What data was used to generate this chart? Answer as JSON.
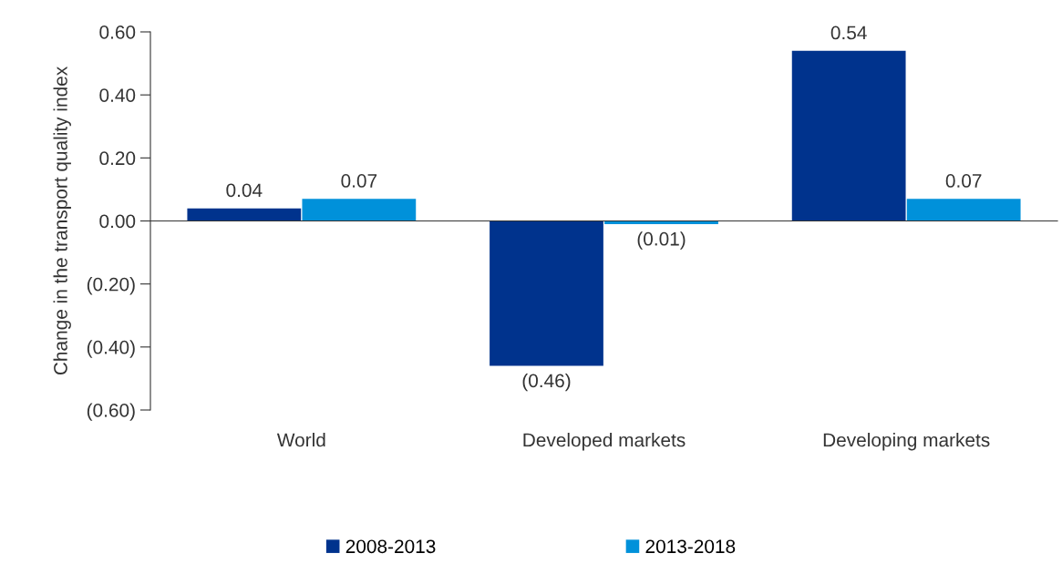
{
  "chart_data": {
    "type": "bar",
    "ylabel": "Change in the transport quality index",
    "categories": [
      "World",
      "Developed markets",
      "Developing markets"
    ],
    "series": [
      {
        "name": "2008-2013",
        "color": "#00338d",
        "values": [
          0.04,
          -0.46,
          0.54
        ],
        "value_labels": [
          "0.04",
          "(0.46)",
          "0.54"
        ]
      },
      {
        "name": "2013-2018",
        "color": "#0091da",
        "values": [
          0.07,
          -0.01,
          0.07
        ],
        "value_labels": [
          "0.07",
          "(0.01)",
          "0.07"
        ]
      }
    ],
    "ylim": [
      -0.6,
      0.6
    ],
    "yticks": [
      {
        "value": -0.6,
        "label": "(0.60)"
      },
      {
        "value": -0.4,
        "label": "(0.40)"
      },
      {
        "value": -0.2,
        "label": "(0.20)"
      },
      {
        "value": 0,
        "label": "0.00"
      },
      {
        "value": 0.2,
        "label": "0.20"
      },
      {
        "value": 0.4,
        "label": "0.40"
      },
      {
        "value": 0.6,
        "label": "0.60"
      }
    ],
    "legend": "bottom"
  }
}
